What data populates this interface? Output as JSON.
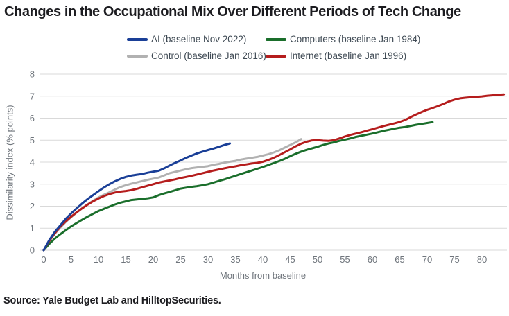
{
  "title": "Changes in the Occupational Mix Over Different Periods of Tech Change",
  "source": "Source: Yale Budget Lab and HilltopSecurities.",
  "colors": {
    "ai_blue": "#1a3f97",
    "computers_green": "#1a6e2b",
    "control_gray": "#b1b1b1",
    "internet_red": "#b51d1d",
    "gridline": "#d9d9d9",
    "axis_text": "#6f757c",
    "title_text": "#1c1c20",
    "legend_text": "#3f4a54"
  },
  "chart_data": {
    "type": "line",
    "title": "Changes in the Occupational Mix Over Different Periods of Tech Change",
    "xlabel": "Months from baseline",
    "ylabel": "Dissimilarity index (% points)",
    "xlim": [
      0,
      85
    ],
    "ylim": [
      0,
      8
    ],
    "x_ticks": [
      0,
      5,
      10,
      15,
      20,
      25,
      30,
      35,
      40,
      45,
      50,
      55,
      60,
      65,
      70,
      75,
      80
    ],
    "y_ticks": [
      0,
      1,
      2,
      3,
      4,
      5,
      6,
      7,
      8
    ],
    "grid": "horizontal",
    "legend_position": "top-center",
    "x_start": 0,
    "x_step": 1,
    "series": [
      {
        "name": "AI (baseline Nov 2022)",
        "id": "ai",
        "color": "#1a3f97",
        "values": [
          0,
          0.45,
          0.82,
          1.12,
          1.42,
          1.67,
          1.9,
          2.12,
          2.32,
          2.5,
          2.68,
          2.85,
          3.0,
          3.13,
          3.24,
          3.33,
          3.39,
          3.43,
          3.46,
          3.52,
          3.57,
          3.61,
          3.72,
          3.85,
          3.97,
          4.08,
          4.2,
          4.3,
          4.4,
          4.48,
          4.55,
          4.62,
          4.7,
          4.78,
          4.85
        ]
      },
      {
        "name": "Computers (baseline Jan 1984)",
        "id": "computers",
        "color": "#1a6e2b",
        "values": [
          0,
          0.28,
          0.52,
          0.72,
          0.9,
          1.08,
          1.23,
          1.38,
          1.52,
          1.65,
          1.78,
          1.88,
          1.98,
          2.08,
          2.16,
          2.22,
          2.28,
          2.31,
          2.33,
          2.36,
          2.4,
          2.5,
          2.58,
          2.65,
          2.72,
          2.8,
          2.84,
          2.88,
          2.91,
          2.95,
          3.0,
          3.07,
          3.15,
          3.22,
          3.3,
          3.38,
          3.46,
          3.54,
          3.62,
          3.7,
          3.78,
          3.87,
          3.96,
          4.05,
          4.15,
          4.27,
          4.38,
          4.48,
          4.56,
          4.63,
          4.7,
          4.78,
          4.85,
          4.9,
          4.97,
          5.02,
          5.08,
          5.15,
          5.2,
          5.25,
          5.3,
          5.36,
          5.42,
          5.47,
          5.52,
          5.57,
          5.6,
          5.65,
          5.7,
          5.74,
          5.78,
          5.82
        ]
      },
      {
        "name": "Control (baseline Jan 2016)",
        "id": "control",
        "color": "#b1b1b1",
        "values": [
          0,
          0.4,
          0.74,
          1.02,
          1.28,
          1.5,
          1.71,
          1.9,
          2.08,
          2.25,
          2.4,
          2.52,
          2.63,
          2.76,
          2.87,
          2.95,
          3.02,
          3.08,
          3.14,
          3.2,
          3.25,
          3.3,
          3.4,
          3.5,
          3.56,
          3.62,
          3.68,
          3.73,
          3.76,
          3.79,
          3.82,
          3.88,
          3.92,
          3.98,
          4.02,
          4.06,
          4.12,
          4.16,
          4.2,
          4.24,
          4.3,
          4.36,
          4.44,
          4.54,
          4.66,
          4.78,
          4.9,
          5.05
        ]
      },
      {
        "name": "Internet (baseline Jan 1996)",
        "id": "internet",
        "color": "#b51d1d",
        "values": [
          0,
          0.42,
          0.76,
          1.06,
          1.3,
          1.52,
          1.72,
          1.9,
          2.07,
          2.22,
          2.35,
          2.46,
          2.55,
          2.62,
          2.66,
          2.69,
          2.73,
          2.79,
          2.86,
          2.93,
          3.0,
          3.07,
          3.12,
          3.17,
          3.22,
          3.28,
          3.33,
          3.38,
          3.44,
          3.5,
          3.56,
          3.62,
          3.67,
          3.72,
          3.77,
          3.81,
          3.86,
          3.9,
          3.94,
          3.97,
          4.02,
          4.1,
          4.2,
          4.32,
          4.45,
          4.58,
          4.72,
          4.84,
          4.93,
          4.99,
          5.0,
          4.98,
          4.97,
          5.0,
          5.08,
          5.17,
          5.24,
          5.3,
          5.36,
          5.43,
          5.5,
          5.57,
          5.64,
          5.7,
          5.76,
          5.83,
          5.92,
          6.05,
          6.17,
          6.28,
          6.38,
          6.46,
          6.55,
          6.65,
          6.76,
          6.84,
          6.9,
          6.93,
          6.95,
          6.97,
          6.99,
          7.02,
          7.04,
          7.06,
          7.08
        ]
      }
    ]
  }
}
